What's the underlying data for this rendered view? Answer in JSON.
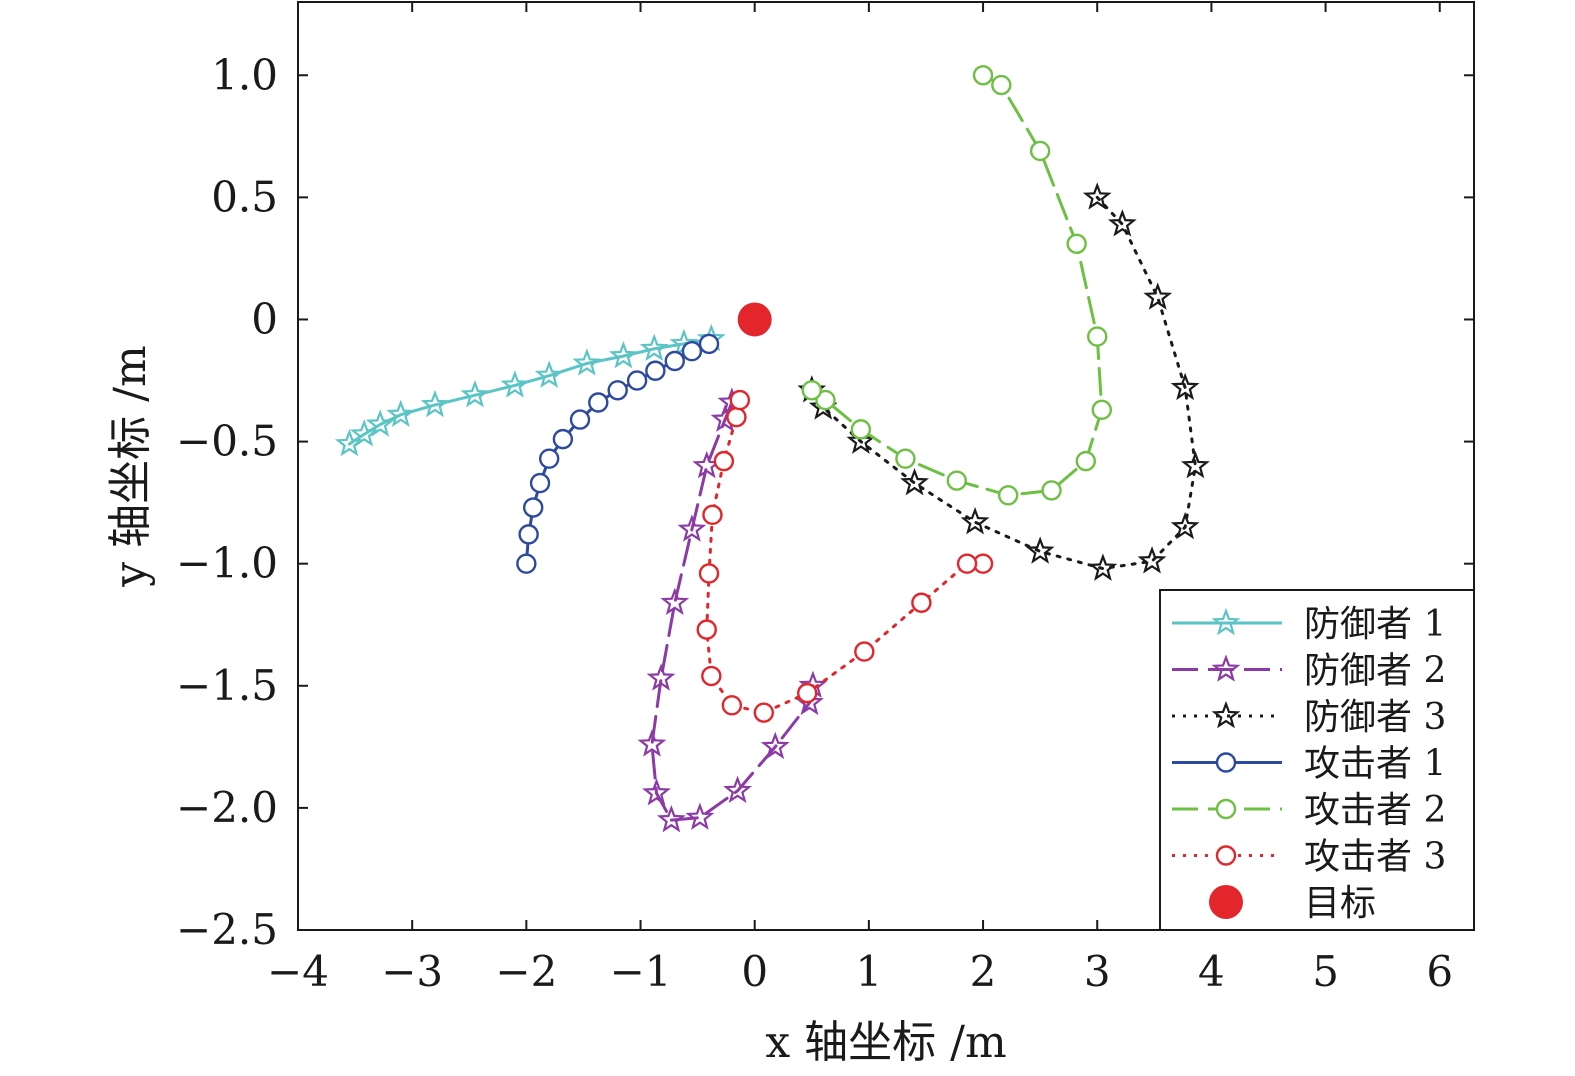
{
  "chart_data": {
    "type": "line",
    "title": "",
    "xlabel": "x 轴坐标 /m",
    "ylabel": "y 轴坐标 /m",
    "xlim": [
      -4,
      6.3
    ],
    "ylim": [
      -2.5,
      1.3
    ],
    "x_ticks": [
      -4,
      -3,
      -2,
      -1,
      0,
      1,
      2,
      3,
      4,
      5,
      6
    ],
    "x_tick_labels": [
      "−4",
      "−3",
      "−2",
      "−1",
      "0",
      "1",
      "2",
      "3",
      "4",
      "5",
      "6"
    ],
    "y_ticks": [
      1.0,
      0.5,
      0,
      -0.5,
      -1.0,
      -1.5,
      -2.0,
      -2.5
    ],
    "y_tick_labels": [
      "1.0",
      "0.5",
      "0",
      "−0.5",
      "−1.0",
      "−1.5",
      "−2.0",
      "−2.5"
    ],
    "grid": false,
    "legend_position": "bottom-right",
    "series": [
      {
        "name": "防御者 1",
        "color": "#5bc4c4",
        "dash": "solid",
        "marker": "star",
        "points": [
          [
            -3.55,
            -0.51
          ],
          [
            -3.42,
            -0.47
          ],
          [
            -3.28,
            -0.43
          ],
          [
            -3.1,
            -0.39
          ],
          [
            -2.8,
            -0.35
          ],
          [
            -2.45,
            -0.31
          ],
          [
            -2.1,
            -0.27
          ],
          [
            -1.8,
            -0.23
          ],
          [
            -1.47,
            -0.18
          ],
          [
            -1.15,
            -0.15
          ],
          [
            -0.88,
            -0.12
          ],
          [
            -0.62,
            -0.1
          ],
          [
            -0.38,
            -0.08
          ]
        ]
      },
      {
        "name": "防御者 2",
        "color": "#8b3aa6",
        "dash": "longdash",
        "marker": "star",
        "points": [
          [
            -0.2,
            -0.34
          ],
          [
            -0.26,
            -0.41
          ],
          [
            -0.42,
            -0.6
          ],
          [
            -0.55,
            -0.86
          ],
          [
            -0.7,
            -1.16
          ],
          [
            -0.82,
            -1.47
          ],
          [
            -0.9,
            -1.74
          ],
          [
            -0.86,
            -1.94
          ],
          [
            -0.73,
            -2.05
          ],
          [
            -0.48,
            -2.04
          ],
          [
            -0.15,
            -1.93
          ],
          [
            0.18,
            -1.75
          ],
          [
            0.48,
            -1.57
          ],
          [
            0.51,
            -1.5
          ]
        ]
      },
      {
        "name": "防御者 3",
        "color": "#1a1a1a",
        "dash": "dotted",
        "marker": "star",
        "points": [
          [
            3.0,
            0.5
          ],
          [
            3.22,
            0.39
          ],
          [
            3.53,
            0.09
          ],
          [
            3.77,
            -0.28
          ],
          [
            3.86,
            -0.6
          ],
          [
            3.77,
            -0.85
          ],
          [
            3.48,
            -0.99
          ],
          [
            3.05,
            -1.02
          ],
          [
            2.5,
            -0.95
          ],
          [
            1.93,
            -0.83
          ],
          [
            1.4,
            -0.67
          ],
          [
            0.93,
            -0.5
          ],
          [
            0.6,
            -0.36
          ],
          [
            0.5,
            -0.29
          ]
        ]
      },
      {
        "name": "攻击者 1",
        "color": "#2e4a9e",
        "dash": "solid",
        "marker": "circle",
        "points": [
          [
            -2.0,
            -1.0
          ],
          [
            -1.98,
            -0.88
          ],
          [
            -1.94,
            -0.77
          ],
          [
            -1.88,
            -0.67
          ],
          [
            -1.8,
            -0.57
          ],
          [
            -1.68,
            -0.49
          ],
          [
            -1.53,
            -0.41
          ],
          [
            -1.37,
            -0.34
          ],
          [
            -1.2,
            -0.29
          ],
          [
            -1.03,
            -0.25
          ],
          [
            -0.87,
            -0.21
          ],
          [
            -0.7,
            -0.17
          ],
          [
            -0.55,
            -0.13
          ],
          [
            -0.4,
            -0.1
          ]
        ]
      },
      {
        "name": "攻击者 2",
        "color": "#6dc043",
        "dash": "longdash",
        "marker": "circle",
        "points": [
          [
            2.0,
            1.0
          ],
          [
            2.16,
            0.96
          ],
          [
            2.5,
            0.69
          ],
          [
            2.82,
            0.31
          ],
          [
            3.0,
            -0.07
          ],
          [
            3.04,
            -0.37
          ],
          [
            2.9,
            -0.58
          ],
          [
            2.6,
            -0.7
          ],
          [
            2.22,
            -0.72
          ],
          [
            1.77,
            -0.66
          ],
          [
            1.32,
            -0.57
          ],
          [
            0.93,
            -0.45
          ],
          [
            0.62,
            -0.33
          ],
          [
            0.5,
            -0.29
          ]
        ]
      },
      {
        "name": "攻击者 3",
        "color": "#e2262c",
        "dash": "dotted",
        "marker": "circle",
        "points": [
          [
            2.0,
            -1.0
          ],
          [
            1.86,
            -1.0
          ],
          [
            1.46,
            -1.16
          ],
          [
            0.96,
            -1.36
          ],
          [
            0.46,
            -1.53
          ],
          [
            0.08,
            -1.61
          ],
          [
            -0.2,
            -1.58
          ],
          [
            -0.38,
            -1.46
          ],
          [
            -0.42,
            -1.27
          ],
          [
            -0.4,
            -1.04
          ],
          [
            -0.37,
            -0.8
          ],
          [
            -0.27,
            -0.58
          ],
          [
            -0.16,
            -0.4
          ],
          [
            -0.13,
            -0.33
          ]
        ]
      },
      {
        "name": "目标",
        "color": "#e2262c",
        "dash": "none",
        "marker": "dot",
        "points": [
          [
            0,
            0
          ]
        ]
      }
    ]
  }
}
